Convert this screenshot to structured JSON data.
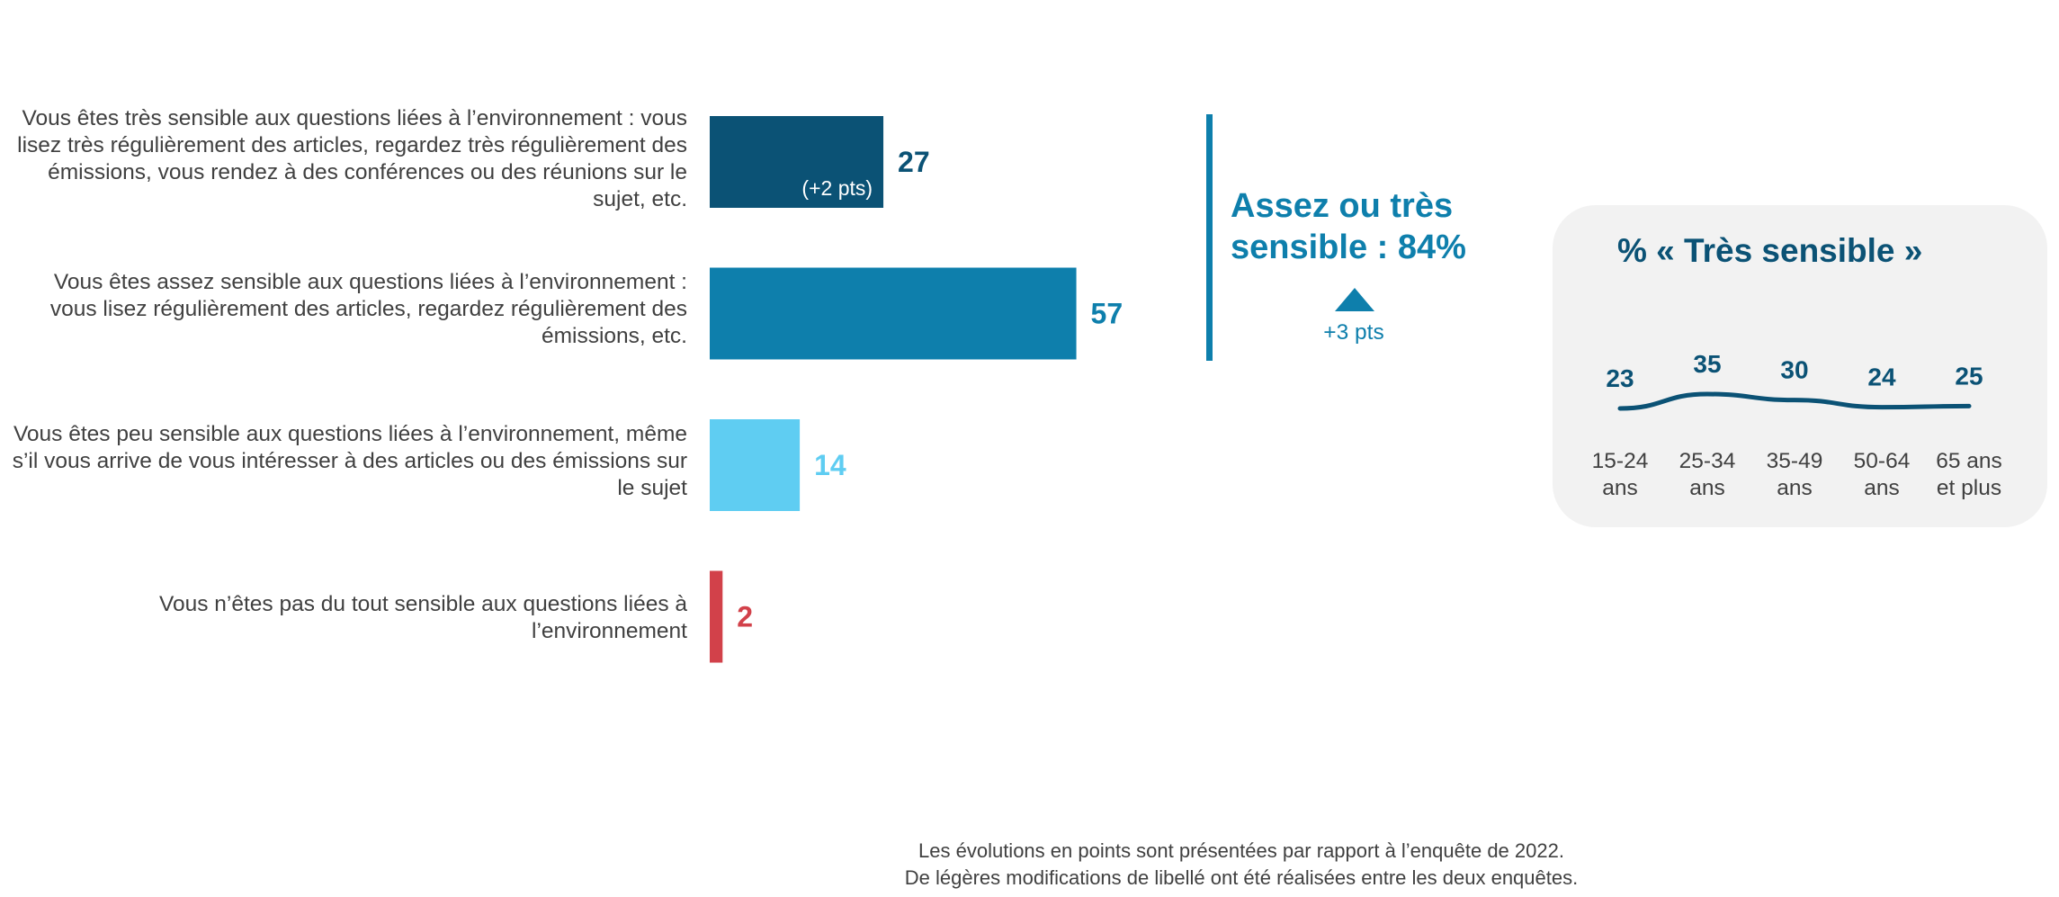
{
  "chart_data": [
    {
      "type": "bar",
      "orientation": "horizontal",
      "categories": [
        "Vous êtes très sensible aux questions liées à l’environnement : vous lisez très régulièrement des articles, regardez très régulièrement des émissions, vous rendez à des conférences ou des réunions sur le sujet, etc.",
        "Vous êtes assez sensible aux questions liées à l’environnement : vous lisez régulièrement des articles, regardez régulièrement des émissions, etc.",
        "Vous êtes peu sensible aux questions liées à l’environnement, même s’il vous arrive de vous intéresser à des articles ou des émissions sur le sujet",
        "Vous n’êtes pas du tout sensible aux questions liées à l’environnement"
      ],
      "values": [
        27,
        57,
        14,
        2
      ],
      "colors": [
        "#0b5275",
        "#0e7fac",
        "#5fcdf2",
        "#d2414a"
      ],
      "value_colors": [
        "#0b5275",
        "#0e7fac",
        "#5fcdf2",
        "#d2414a"
      ],
      "annotations": [
        "(+2 pts)",
        "",
        "",
        ""
      ],
      "xlim": [
        0,
        100
      ]
    },
    {
      "type": "line",
      "title": "% « Très sensible »",
      "categories": [
        "15-24 ans",
        "25-34 ans",
        "35-49 ans",
        "50-64 ans",
        "65 ans et plus"
      ],
      "values": [
        23,
        35,
        30,
        24,
        25
      ],
      "color": "#0b5275"
    }
  ],
  "total": {
    "label_line1": "Assez ou très",
    "label_line2": "sensible : 84%",
    "delta": "+3 pts"
  },
  "footnote": {
    "line1": "Les évolutions en points sont présentées par rapport à l’enquête de 2022.",
    "line2": "De légères modifications de libellé ont été réalisées entre les deux enquêtes."
  }
}
